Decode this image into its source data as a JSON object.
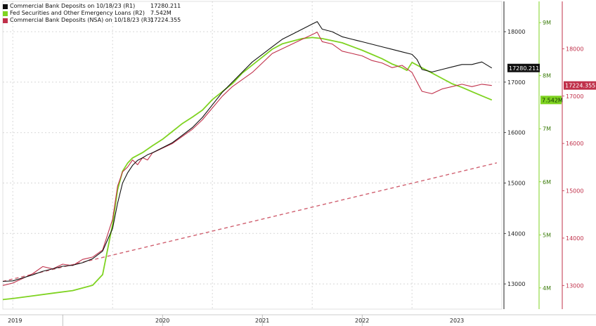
{
  "legend": [
    {
      "label": "Commercial Bank Deposits on 10/18/23 (R1)",
      "value": "17280.211",
      "color": "#111111"
    },
    {
      "label": "Fed Securities and Other Emergency Loans (R2)",
      "value": "7.542M",
      "color": "#7fd321"
    },
    {
      "label": "Commercial Bank Deposits (NSA) on 10/18/23 (R3)",
      "value": "17224.355",
      "color": "#c0304a"
    }
  ],
  "last_value_tags": {
    "r1": "17280.211",
    "r2": "7.542M",
    "r3": "17224.355"
  },
  "colors": {
    "r1": "#111111",
    "r2": "#7fd321",
    "r3": "#c0304a",
    "trend": "#d06070"
  },
  "chart_data": {
    "type": "line",
    "x_ticks": [
      "2019",
      "2020",
      "2021",
      "2022",
      "2023"
    ],
    "axes": {
      "R1": {
        "ticks": [
          "13000",
          "14000",
          "15000",
          "16000",
          "17000",
          "18000"
        ],
        "range": [
          12500,
          18600
        ]
      },
      "R2": {
        "ticks": [
          "4M",
          "5M",
          "6M",
          "7M",
          "8M",
          "9M"
        ],
        "range": [
          3.6,
          9.4
        ]
      },
      "R3": {
        "ticks": [
          "13000",
          "14000",
          "15000",
          "16000",
          "17000",
          "18000"
        ],
        "range": [
          12500,
          19000
        ]
      }
    },
    "series": [
      {
        "key": "r1",
        "axis": "R1",
        "name": "Commercial Bank Deposits on 10/18/23 (R1)",
        "x": [
          2018.9,
          2019.0,
          2019.1,
          2019.2,
          2019.3,
          2019.4,
          2019.5,
          2019.6,
          2019.7,
          2019.8,
          2019.9,
          2020.0,
          2020.05,
          2020.1,
          2020.15,
          2020.2,
          2020.25,
          2020.3,
          2020.35,
          2020.4,
          2020.5,
          2020.6,
          2020.7,
          2020.8,
          2020.9,
          2021.0,
          2021.1,
          2021.2,
          2021.3,
          2021.4,
          2021.5,
          2021.6,
          2021.7,
          2021.8,
          2021.9,
          2022.0,
          2022.05,
          2022.1,
          2022.2,
          2022.3,
          2022.4,
          2022.5,
          2022.6,
          2022.7,
          2022.8,
          2022.9,
          2023.0,
          2023.05,
          2023.1,
          2023.2,
          2023.3,
          2023.4,
          2023.5,
          2023.6,
          2023.7,
          2023.8
        ],
        "values": [
          13050,
          13060,
          13120,
          13180,
          13250,
          13300,
          13350,
          13370,
          13420,
          13500,
          13650,
          14100,
          14600,
          15000,
          15200,
          15350,
          15450,
          15500,
          15560,
          15600,
          15700,
          15800,
          15950,
          16100,
          16300,
          16550,
          16800,
          17000,
          17200,
          17400,
          17550,
          17700,
          17850,
          17950,
          18050,
          18150,
          18200,
          18050,
          18000,
          17900,
          17850,
          17800,
          17750,
          17700,
          17650,
          17600,
          17550,
          17450,
          17250,
          17200,
          17250,
          17300,
          17350,
          17350,
          17400,
          17280
        ]
      },
      {
        "key": "r2",
        "axis": "R2",
        "name": "Fed Securities and Other Emergency Loans (R2)",
        "x": [
          2018.9,
          2019.0,
          2019.2,
          2019.4,
          2019.6,
          2019.8,
          2019.9,
          2020.0,
          2020.05,
          2020.1,
          2020.15,
          2020.2,
          2020.3,
          2020.4,
          2020.5,
          2020.6,
          2020.7,
          2020.8,
          2020.9,
          2021.0,
          2021.1,
          2021.2,
          2021.3,
          2021.4,
          2021.5,
          2021.6,
          2021.7,
          2021.8,
          2021.9,
          2022.0,
          2022.1,
          2022.2,
          2022.3,
          2022.4,
          2022.5,
          2022.6,
          2022.7,
          2022.8,
          2022.9,
          2022.95,
          2023.0,
          2023.1,
          2023.2,
          2023.3,
          2023.4,
          2023.5,
          2023.6,
          2023.7,
          2023.8
        ],
        "values": [
          3.78,
          3.8,
          3.85,
          3.9,
          3.95,
          4.05,
          4.25,
          5.2,
          5.85,
          6.2,
          6.35,
          6.45,
          6.55,
          6.68,
          6.8,
          6.95,
          7.1,
          7.22,
          7.35,
          7.55,
          7.7,
          7.85,
          8.05,
          8.2,
          8.35,
          8.5,
          8.6,
          8.65,
          8.7,
          8.72,
          8.7,
          8.66,
          8.62,
          8.55,
          8.48,
          8.4,
          8.32,
          8.22,
          8.15,
          8.1,
          8.25,
          8.15,
          8.05,
          7.95,
          7.85,
          7.78,
          7.7,
          7.62,
          7.542
        ]
      },
      {
        "key": "r3",
        "axis": "R3",
        "name": "Commercial Bank Deposits (NSA) on 10/18/23 (R3)",
        "x": [
          2018.9,
          2019.0,
          2019.1,
          2019.2,
          2019.3,
          2019.4,
          2019.5,
          2019.6,
          2019.7,
          2019.8,
          2019.9,
          2020.0,
          2020.05,
          2020.1,
          2020.15,
          2020.2,
          2020.25,
          2020.3,
          2020.35,
          2020.4,
          2020.5,
          2020.6,
          2020.7,
          2020.8,
          2020.9,
          2021.0,
          2021.1,
          2021.2,
          2021.3,
          2021.4,
          2021.5,
          2021.6,
          2021.7,
          2021.8,
          2021.9,
          2022.0,
          2022.05,
          2022.1,
          2022.2,
          2022.3,
          2022.4,
          2022.5,
          2022.6,
          2022.7,
          2022.8,
          2022.9,
          2023.0,
          2023.05,
          2023.1,
          2023.2,
          2023.3,
          2023.4,
          2023.5,
          2023.6,
          2023.7,
          2023.8
        ],
        "values": [
          13000,
          13050,
          13150,
          13250,
          13400,
          13350,
          13450,
          13420,
          13550,
          13600,
          13750,
          14400,
          15100,
          15400,
          15500,
          15650,
          15550,
          15700,
          15650,
          15800,
          15900,
          16000,
          16150,
          16300,
          16500,
          16750,
          17000,
          17200,
          17350,
          17500,
          17700,
          17900,
          18000,
          18100,
          18200,
          18300,
          18350,
          18150,
          18100,
          17950,
          17900,
          17850,
          17750,
          17700,
          17600,
          17650,
          17500,
          17300,
          17100,
          17050,
          17150,
          17200,
          17250,
          17200,
          17250,
          17224
        ]
      },
      {
        "key": "trend",
        "axis": "R1",
        "name": "",
        "x": [
          2018.9,
          2023.85
        ],
        "values": [
          13050,
          15400
        ]
      }
    ]
  }
}
